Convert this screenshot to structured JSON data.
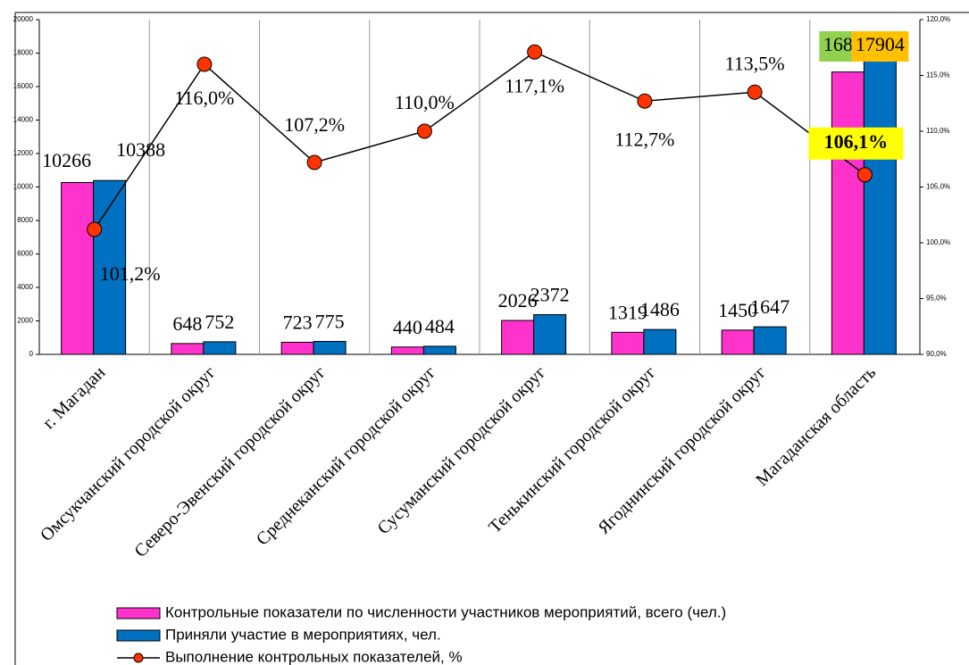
{
  "chart_data": {
    "type": "bar-line",
    "categories": [
      "г. Магадан",
      "Омсукчанский городской округ",
      "Северо-Эвенский городской округ",
      "Среднеканский городской округ",
      "Сусуманский городской округ",
      "Тенькинский городской округ",
      "Ягоднинский городской округ",
      "Магаданская область"
    ],
    "series": [
      {
        "name": "Контрольные показатели по численности участников мероприятий, всего (чел.)",
        "color": "#ff33cc",
        "values": [
          10266,
          648,
          723,
          440,
          2026,
          1319,
          1450,
          16873
        ]
      },
      {
        "name": "Приняли участие в мероприятиях, чел.",
        "color": "#0070c0",
        "values": [
          10388,
          752,
          775,
          484,
          2372,
          1486,
          1647,
          17904
        ]
      },
      {
        "name": "Выполнение контрольных показателей, %",
        "color": "#ff3300",
        "axis": "y2",
        "values": [
          101.2,
          116.0,
          107.2,
          110.0,
          117.1,
          112.7,
          113.5,
          106.1
        ],
        "value_labels": [
          "101,2%",
          "116,0%",
          "107,2%",
          "110,0%",
          "117,1%",
          "112,7%",
          "113,5%",
          "106,1%"
        ]
      }
    ],
    "ylim": [
      0,
      20000
    ],
    "yticks": [
      0,
      2000,
      4000,
      6000,
      8000,
      10000,
      12000,
      14000,
      16000,
      18000,
      20000
    ],
    "y2lim": [
      90,
      120
    ],
    "y2ticks": [
      {
        "value": 90,
        "label": "90,0%"
      },
      {
        "value": 95,
        "label": "95,0%"
      },
      {
        "value": 100,
        "label": "100,0%"
      },
      {
        "value": 105,
        "label": "105,0%"
      },
      {
        "value": 110,
        "label": "110,0%"
      },
      {
        "value": 115,
        "label": "115,0%"
      },
      {
        "value": 120,
        "label": "120,0%"
      }
    ],
    "legend": "bottom"
  }
}
